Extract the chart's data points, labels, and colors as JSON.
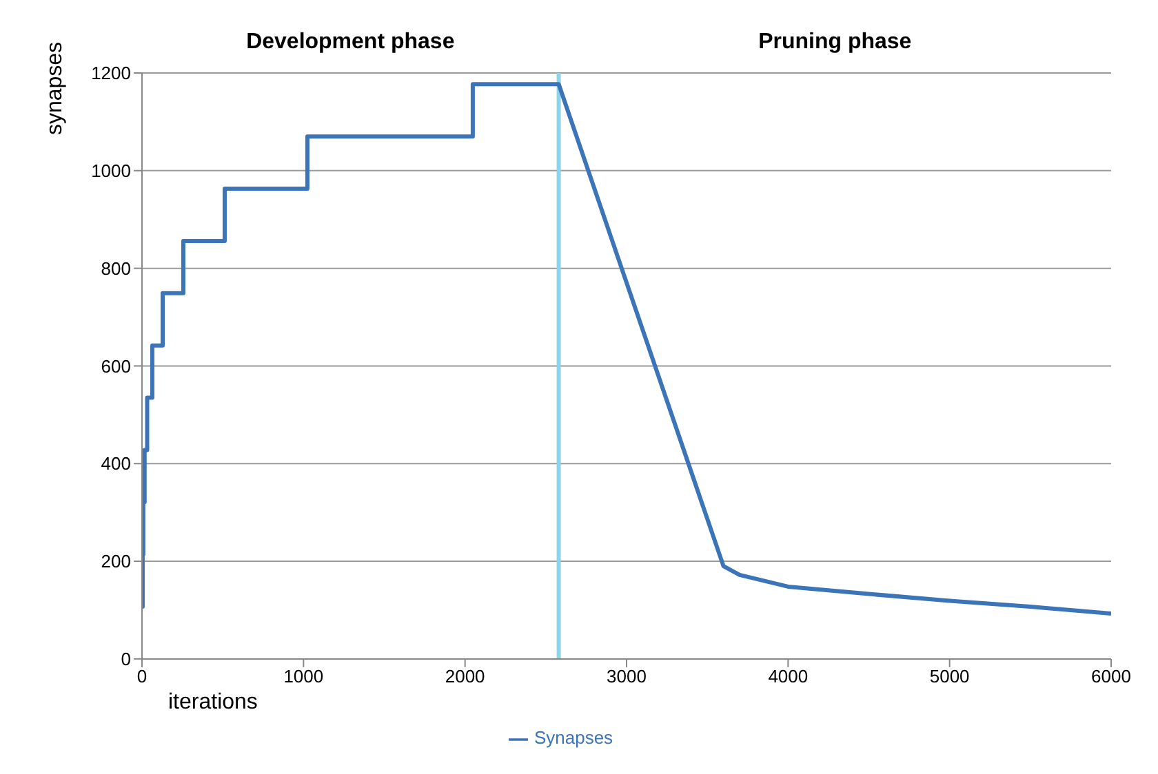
{
  "chart_data": {
    "type": "line",
    "x": [
      0,
      4,
      4,
      8,
      8,
      16,
      16,
      32,
      32,
      64,
      64,
      128,
      128,
      256,
      256,
      512,
      512,
      1024,
      1024,
      2048,
      2048,
      2580,
      3600,
      3700,
      4000,
      4500,
      5000,
      5500,
      6000
    ],
    "series": [
      {
        "name": "Synapses",
        "color": "#3c74b8",
        "values": [
          107,
          107,
          214,
          214,
          321,
          321,
          428,
          428,
          535,
          535,
          642,
          642,
          749,
          749,
          856,
          856,
          963,
          963,
          1070,
          1070,
          1177,
          1177,
          190,
          172,
          148,
          133,
          119,
          107,
          93
        ]
      }
    ],
    "xlabel": "iterations",
    "ylabel": "synapses",
    "annotations": [
      "Development phase",
      "Pruning phase"
    ],
    "xlim": [
      0,
      6000
    ],
    "xticks": [
      0,
      1000,
      2000,
      3000,
      4000,
      5000,
      6000
    ],
    "ylim": [
      0,
      1200
    ],
    "yticks": [
      0,
      200,
      400,
      600,
      800,
      1000,
      1200
    ],
    "ref_lines": [
      {
        "axis": "x",
        "value": 2580,
        "color": "#8fd3e6"
      }
    ],
    "grid": "y",
    "legend": "bottom",
    "marker": "none",
    "line_style": "solid"
  }
}
